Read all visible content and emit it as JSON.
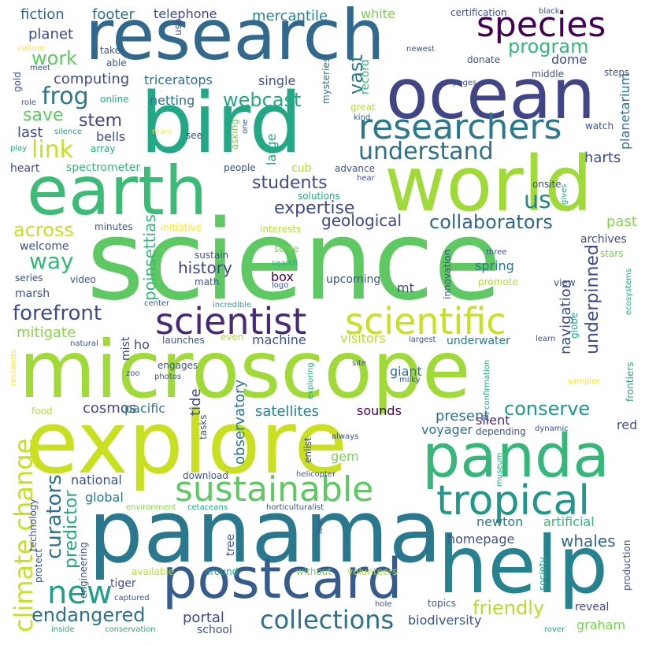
{
  "words": [
    {
      "text": "science",
      "color": "#5ec962"
    },
    {
      "text": "microscope",
      "color": "#a0da39"
    },
    {
      "text": "panama",
      "color": "#2a788e"
    },
    {
      "text": "explore",
      "color": "#c8e020"
    },
    {
      "text": "research",
      "color": "#31688e"
    },
    {
      "text": "ocean",
      "color": "#414487"
    },
    {
      "text": "bird",
      "color": "#22a884"
    },
    {
      "text": "world",
      "color": "#a0da39"
    },
    {
      "text": "earth",
      "color": "#3bbb75"
    },
    {
      "text": "panda",
      "color": "#35b779"
    },
    {
      "text": "help",
      "color": "#26828e"
    },
    {
      "text": "postcard",
      "color": "#365c8d"
    },
    {
      "text": "tropical",
      "color": "#1f988b"
    },
    {
      "text": "sustainable",
      "color": "#5ec962"
    },
    {
      "text": "species",
      "color": "#440154"
    },
    {
      "text": "researchers",
      "color": "#2a788e"
    },
    {
      "text": "scientist",
      "color": "#482878"
    },
    {
      "text": "scientific",
      "color": "#c8e020"
    },
    {
      "text": "new",
      "color": "#1fa187"
    },
    {
      "text": "collections",
      "color": "#2d708e"
    },
    {
      "text": "climate change",
      "color": "#c8e020"
    },
    {
      "text": "understand",
      "color": "#2d708e"
    },
    {
      "text": "link",
      "color": "#c8e020"
    },
    {
      "text": "frog",
      "color": "#2a788e"
    },
    {
      "text": "webcast",
      "color": "#22a884"
    },
    {
      "text": "program",
      "color": "#35b779"
    },
    {
      "text": "vast",
      "color": "#2a788e"
    },
    {
      "text": "expertise",
      "color": "#3e4a89"
    },
    {
      "text": "collaborators",
      "color": "#31688e"
    },
    {
      "text": "students",
      "color": "#3e4a89"
    },
    {
      "text": "us",
      "color": "#25848e"
    },
    {
      "text": "geological",
      "color": "#3e4a89"
    },
    {
      "text": "forefront",
      "color": "#3e4a89"
    },
    {
      "text": "way",
      "color": "#35b779"
    },
    {
      "text": "across",
      "color": "#c8e020"
    },
    {
      "text": "work",
      "color": "#5ec962"
    },
    {
      "text": "save",
      "color": "#5ec962"
    },
    {
      "text": "stem",
      "color": "#404688"
    },
    {
      "text": "curators",
      "color": "#2c728e"
    },
    {
      "text": "predictor",
      "color": "#22a884"
    },
    {
      "text": "endangered",
      "color": "#2c728e"
    },
    {
      "text": "friendly",
      "color": "#b5de2b"
    },
    {
      "text": "conserve",
      "color": "#1f988b"
    },
    {
      "text": "underpinned",
      "color": "#3e4a89"
    },
    {
      "text": "navigation",
      "color": "#3e4a89"
    },
    {
      "text": "history",
      "color": "#404688"
    },
    {
      "text": "poinsettias",
      "color": "#35b779"
    },
    {
      "text": "computing",
      "color": "#3e4a89"
    },
    {
      "text": "triceratops",
      "color": "#2d708e"
    },
    {
      "text": "footer",
      "color": "#2d708e"
    },
    {
      "text": "fiction",
      "color": "#31688e"
    },
    {
      "text": "telephone",
      "color": "#3e4a89"
    },
    {
      "text": "mercantile",
      "color": "#25848e"
    },
    {
      "text": "white",
      "color": "#7ad151"
    },
    {
      "text": "planet",
      "color": "#3e4a89"
    },
    {
      "text": "netting",
      "color": "#2d708e"
    },
    {
      "text": "single",
      "color": "#3b528b"
    },
    {
      "text": "last",
      "color": "#3e4a89"
    },
    {
      "text": "bells",
      "color": "#3e4a89"
    },
    {
      "text": "heart",
      "color": "#3e4a89"
    },
    {
      "text": "spectrometer",
      "color": "#35b779"
    },
    {
      "text": "mitigate",
      "color": "#86d549"
    },
    {
      "text": "welcome",
      "color": "#3b528b"
    },
    {
      "text": "series",
      "color": "#3b528b"
    },
    {
      "text": "marsh",
      "color": "#3b528b"
    },
    {
      "text": "video",
      "color": "#3b528b"
    },
    {
      "text": "cosmos",
      "color": "#3e4a89"
    },
    {
      "text": "pacific",
      "color": "#2a788e"
    },
    {
      "text": "satellites",
      "color": "#25848e"
    },
    {
      "text": "sounds",
      "color": "#440154"
    },
    {
      "text": "present",
      "color": "#2d708e"
    },
    {
      "text": "voyager",
      "color": "#2d708e"
    },
    {
      "text": "gem",
      "color": "#7ad151"
    },
    {
      "text": "national",
      "color": "#3b528b"
    },
    {
      "text": "global",
      "color": "#2a788e"
    },
    {
      "text": "newton",
      "color": "#2a788e"
    },
    {
      "text": "artificial",
      "color": "#35b779"
    },
    {
      "text": "homepage",
      "color": "#3b528b"
    },
    {
      "text": "whales",
      "color": "#31688e"
    },
    {
      "text": "tiger",
      "color": "#3e4a89"
    },
    {
      "text": "portal",
      "color": "#3e4a89"
    },
    {
      "text": "biodiversity",
      "color": "#3b528b"
    },
    {
      "text": "graham",
      "color": "#7ad151"
    },
    {
      "text": "reveal",
      "color": "#3e4a89"
    },
    {
      "text": "school",
      "color": "#3b528b"
    },
    {
      "text": "red",
      "color": "#3b528b"
    },
    {
      "text": "harts",
      "color": "#3e4a89"
    },
    {
      "text": "past",
      "color": "#86d549"
    },
    {
      "text": "archives",
      "color": "#3e4a89"
    },
    {
      "text": "dome",
      "color": "#3e4a89"
    },
    {
      "text": "planetarium",
      "color": "#2d708e"
    },
    {
      "text": "giant",
      "color": "#2d708e"
    },
    {
      "text": "underwater",
      "color": "#2a788e"
    },
    {
      "text": "visitors",
      "color": "#b5de2b"
    },
    {
      "text": "machine",
      "color": "#3b528b"
    },
    {
      "text": "box",
      "color": "#440154"
    },
    {
      "text": "mt",
      "color": "#3e4a89"
    },
    {
      "text": "upcoming",
      "color": "#3b528b"
    },
    {
      "text": "spring",
      "color": "#2a788e"
    },
    {
      "text": "silent",
      "color": "#482878"
    },
    {
      "text": "tide",
      "color": "#3e4a89"
    },
    {
      "text": "observatory",
      "color": "#2a788e"
    },
    {
      "text": "mist",
      "color": "#3e4a89"
    },
    {
      "text": "ho",
      "color": "#3e4a89"
    },
    {
      "text": "launches",
      "color": "#3b528b"
    },
    {
      "text": "engages",
      "color": "#3b528b"
    },
    {
      "text": "math",
      "color": "#3b528b"
    },
    {
      "text": "sustain",
      "color": "#3b528b"
    },
    {
      "text": "minutes",
      "color": "#3b528b"
    },
    {
      "text": "initiative",
      "color": "#fde725"
    },
    {
      "text": "interests",
      "color": "#b5de2b"
    },
    {
      "text": "solve",
      "color": "#7ad151"
    },
    {
      "text": "three",
      "color": "#3b528b"
    },
    {
      "text": "stars",
      "color": "#7ad151"
    },
    {
      "text": "promote",
      "color": "#b5de2b"
    },
    {
      "text": "view",
      "color": "#3b528b"
    },
    {
      "text": "record",
      "color": "#35b779"
    },
    {
      "text": "mysteries",
      "color": "#2d708e"
    },
    {
      "text": "middle",
      "color": "#3b528b"
    },
    {
      "text": "donate",
      "color": "#3b528b"
    },
    {
      "text": "steps",
      "color": "#3b528b"
    },
    {
      "text": "certification",
      "color": "#3b528b"
    },
    {
      "text": "black",
      "color": "#3b528b"
    },
    {
      "text": "newest",
      "color": "#3b528b"
    },
    {
      "text": "take",
      "color": "#3b528b"
    },
    {
      "text": "able",
      "color": "#3b528b"
    },
    {
      "text": "online",
      "color": "#22a884"
    },
    {
      "text": "great",
      "color": "#b5de2b"
    },
    {
      "text": "kind",
      "color": "#3b528b"
    },
    {
      "text": "watch",
      "color": "#3b528b"
    },
    {
      "text": "see",
      "color": "#3b528b"
    },
    {
      "text": "people",
      "color": "#3b528b"
    },
    {
      "text": "advance",
      "color": "#3b528b"
    },
    {
      "text": "cub",
      "color": "#b5de2b"
    },
    {
      "text": "hear",
      "color": "#3b528b"
    },
    {
      "text": "onsite",
      "color": "#3b528b"
    },
    {
      "text": "array",
      "color": "#22a884"
    },
    {
      "text": "use",
      "color": "#3b528b"
    },
    {
      "text": "gold",
      "color": "#3b528b"
    },
    {
      "text": "culture",
      "color": "#fde725"
    },
    {
      "text": "meet",
      "color": "#3b528b"
    },
    {
      "text": "role",
      "color": "#3b528b"
    },
    {
      "text": "play",
      "color": "#22a884"
    },
    {
      "text": "silence",
      "color": "#22a884"
    },
    {
      "text": "mars",
      "color": "#fde725"
    },
    {
      "text": "asking",
      "color": "#7ad151"
    },
    {
      "text": "one",
      "color": "#3b528b"
    },
    {
      "text": "large",
      "color": "#22a884"
    },
    {
      "text": "pages",
      "color": "#3b528b"
    },
    {
      "text": "solutions",
      "color": "#22a884"
    },
    {
      "text": "gives",
      "color": "#22a884"
    },
    {
      "text": "search",
      "color": "#22a884"
    },
    {
      "text": "logo",
      "color": "#3b528b"
    },
    {
      "text": "center",
      "color": "#3b528b"
    },
    {
      "text": "incredible",
      "color": "#22a884"
    },
    {
      "text": "innovation",
      "color": "#3b528b"
    },
    {
      "text": "ecosystems",
      "color": "#22a884"
    },
    {
      "text": "natural",
      "color": "#3b528b"
    },
    {
      "text": "even",
      "color": "#b5de2b"
    },
    {
      "text": "largest",
      "color": "#3b528b"
    },
    {
      "text": "learn",
      "color": "#3b528b"
    },
    {
      "text": "globe",
      "color": "#22a884"
    },
    {
      "text": "zoo",
      "color": "#3b528b"
    },
    {
      "text": "photos",
      "color": "#3b528b"
    },
    {
      "text": "residents",
      "color": "#fde725"
    },
    {
      "text": "exploring",
      "color": "#22a884"
    },
    {
      "text": "site",
      "color": "#3b528b"
    },
    {
      "text": "milky",
      "color": "#3b528b"
    },
    {
      "text": "confirmation",
      "color": "#22a884"
    },
    {
      "text": "sampler",
      "color": "#fde725"
    },
    {
      "text": "frontiers",
      "color": "#22a884"
    },
    {
      "text": "food",
      "color": "#b5de2b"
    },
    {
      "text": "tasks",
      "color": "#3b528b"
    },
    {
      "text": "enlist",
      "color": "#3b528b"
    },
    {
      "text": "always",
      "color": "#3b528b"
    },
    {
      "text": "depending",
      "color": "#3b528b"
    },
    {
      "text": "dynamic",
      "color": "#3b528b"
    },
    {
      "text": "museum",
      "color": "#22a884"
    },
    {
      "text": "download",
      "color": "#3b528b"
    },
    {
      "text": "helicopter",
      "color": "#3b528b"
    },
    {
      "text": "technology",
      "color": "#3b528b"
    },
    {
      "text": "environment",
      "color": "#86d549"
    },
    {
      "text": "cetaceans",
      "color": "#22a884"
    },
    {
      "text": "horticulturalist",
      "color": "#3b528b"
    },
    {
      "text": "look",
      "color": "#3b528b"
    },
    {
      "text": "protect",
      "color": "#3b528b"
    },
    {
      "text": "engineering",
      "color": "#3b528b"
    },
    {
      "text": "tree",
      "color": "#3b528b"
    },
    {
      "text": "available",
      "color": "#b5de2b"
    },
    {
      "text": "around",
      "color": "#22a884"
    },
    {
      "text": "without",
      "color": "#7ad151"
    },
    {
      "text": "volunteers",
      "color": "#b5de2b"
    },
    {
      "text": "society",
      "color": "#22a884"
    },
    {
      "text": "production",
      "color": "#3b528b"
    },
    {
      "text": "captured",
      "color": "#3b528b"
    },
    {
      "text": "hole",
      "color": "#3b528b"
    },
    {
      "text": "topics",
      "color": "#3b528b"
    },
    {
      "text": "inside",
      "color": "#22a884"
    },
    {
      "text": "conservation",
      "color": "#22a884"
    },
    {
      "text": "rover",
      "color": "#22a884"
    }
  ]
}
